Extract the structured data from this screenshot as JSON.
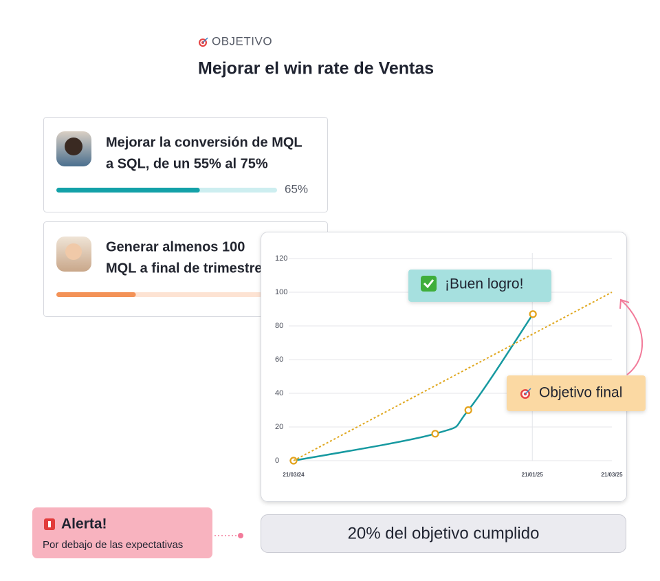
{
  "header": {
    "eyebrow": "OBJETIVO",
    "title": "Mejorar el win rate de Ventas"
  },
  "cards": [
    {
      "lines": [
        "Mejorar la conversión de MQL",
        "a SQL, de un 55% al 75%"
      ],
      "progress": 65,
      "progress_label": "65%",
      "color": "#13a1a8",
      "track": "#cdeef0"
    },
    {
      "lines": [
        "Generar almenos 100",
        "MQL a final de trimestre"
      ],
      "progress": 36,
      "color": "#f39257",
      "track": "#fde3d3"
    }
  ],
  "chart_data": {
    "type": "line",
    "xlim": [
      0,
      100
    ],
    "xticks": [
      {
        "value": 0,
        "label": "21/03/24"
      },
      {
        "value": 75,
        "label": "21/01/25"
      },
      {
        "value": 100,
        "label": "21/03/25"
      }
    ],
    "ylim": [
      0,
      120
    ],
    "yticks": [
      0,
      20,
      40,
      60,
      80,
      100,
      120
    ],
    "grid": true,
    "series": [
      {
        "color": "#1699a0",
        "marker_color": "#e3a21a",
        "x": [
          0,
          44.5,
          54.9,
          75.2
        ],
        "values": [
          0,
          16,
          30,
          87
        ]
      },
      {
        "color": "#e0a820",
        "style": "dotted",
        "x": [
          0,
          100
        ],
        "values": [
          0,
          100
        ]
      }
    ],
    "annotations": [
      {
        "text": "¡Buen logro!"
      },
      {
        "text": "Objetivo final"
      }
    ]
  },
  "alert": {
    "title": "Alerta!",
    "text": "Por debajo de las expectativas"
  },
  "summary": "20% del objetivo cumplido"
}
